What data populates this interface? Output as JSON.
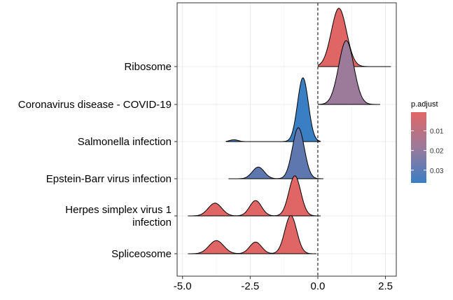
{
  "chart_data": {
    "type": "ridgeline",
    "categories": [
      "Ribosome",
      "Coronavirus disease - COVID-19",
      "Salmonella infection",
      "Epstein-Barr virus infection",
      "Herpes simplex virus 1 infection",
      "Spliceosome"
    ],
    "category_lines": [
      [
        "Ribosome"
      ],
      [
        "Coronavirus disease - COVID-19"
      ],
      [
        "Salmonella infection"
      ],
      [
        "Epstein-Barr virus infection"
      ],
      [
        "Herpes simplex virus 1",
        "infection"
      ],
      [
        "Spliceosome"
      ]
    ],
    "series": [
      {
        "category": "Ribosome",
        "p_adjust": 0.003,
        "fill": "#E06666",
        "range": [
          0.0,
          2.7
        ],
        "peaks": [
          {
            "mu": 0.78,
            "sd": 0.28,
            "h": 1.6
          }
        ]
      },
      {
        "category": "Coronavirus disease - COVID-19",
        "p_adjust": 0.018,
        "fill": "#9B7A9A",
        "range": [
          0.0,
          2.3
        ],
        "peaks": [
          {
            "mu": 1.05,
            "sd": 0.28,
            "h": 1.75
          }
        ]
      },
      {
        "category": "Salmonella infection",
        "p_adjust": 0.035,
        "fill": "#3A7EC4",
        "range": [
          -3.4,
          0.1
        ],
        "peaks": [
          {
            "mu": -0.55,
            "sd": 0.2,
            "h": 1.75
          },
          {
            "mu": -3.1,
            "sd": 0.15,
            "h": 0.05
          }
        ]
      },
      {
        "category": "Epstein-Barr virus infection",
        "p_adjust": 0.028,
        "fill": "#5E77AF",
        "range": [
          -3.3,
          0.2
        ],
        "peaks": [
          {
            "mu": -0.72,
            "sd": 0.22,
            "h": 1.4
          },
          {
            "mu": -2.2,
            "sd": 0.22,
            "h": 0.32
          }
        ]
      },
      {
        "category": "Herpes simplex virus 1 infection",
        "p_adjust": 0.002,
        "fill": "#E06666",
        "range": [
          -4.8,
          0.1
        ],
        "peaks": [
          {
            "mu": -0.85,
            "sd": 0.22,
            "h": 1.1
          },
          {
            "mu": -2.3,
            "sd": 0.22,
            "h": 0.42
          },
          {
            "mu": -3.8,
            "sd": 0.25,
            "h": 0.35
          }
        ]
      },
      {
        "category": "Spliceosome",
        "p_adjust": 0.002,
        "fill": "#E06666",
        "range": [
          -4.8,
          -0.05
        ],
        "peaks": [
          {
            "mu": -1.0,
            "sd": 0.22,
            "h": 1.05
          },
          {
            "mu": -2.3,
            "sd": 0.22,
            "h": 0.32
          },
          {
            "mu": -3.75,
            "sd": 0.27,
            "h": 0.36
          }
        ]
      }
    ],
    "x_ticks": [
      -5.0,
      -2.5,
      0.0,
      2.5
    ],
    "x_tick_labels": [
      "-5.0",
      "-2.5",
      "0.0",
      "2.5"
    ],
    "xlim": [
      -5.2,
      2.9
    ],
    "reference_line_x": 0.0,
    "grid": true,
    "legend": {
      "title": "p.adjust",
      "placement": "right",
      "ticks": [
        0.01,
        0.02,
        0.03
      ],
      "tick_labels": [
        "0.01",
        "0.02",
        "0.03"
      ],
      "range": [
        0.0005,
        0.0365
      ],
      "color_low_value": "#E06666",
      "color_high_value": "#3A7EC4"
    }
  }
}
